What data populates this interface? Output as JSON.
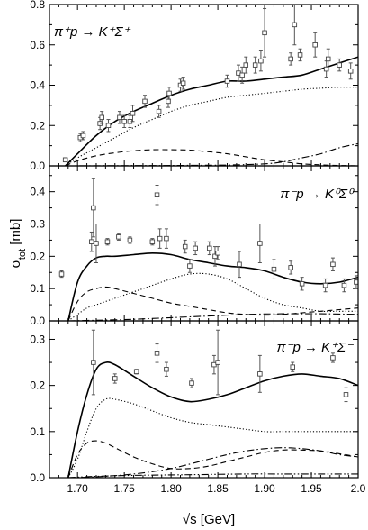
{
  "figure": {
    "xlabel": "√s [GeV]",
    "ylabel": "σ_tot [mb]"
  },
  "chart_data": [
    {
      "type": "scatter",
      "label": "π⁺p → K⁺Σ⁺",
      "xlim": [
        1.67,
        2.0
      ],
      "ylim": [
        0,
        0.8
      ],
      "xticks": [
        "1.70",
        "1.75",
        "1.80",
        "1.85",
        "1.90",
        "1.95",
        "2.0"
      ],
      "yticks": [
        "0.0",
        "0.2",
        "0.4",
        "0.6",
        "0.8"
      ],
      "points": [
        {
          "x": 1.687,
          "y": 0.03,
          "err": 0.01
        },
        {
          "x": 1.703,
          "y": 0.14,
          "err": 0.02
        },
        {
          "x": 1.706,
          "y": 0.15,
          "err": 0.02
        },
        {
          "x": 1.724,
          "y": 0.21,
          "err": 0.03
        },
        {
          "x": 1.726,
          "y": 0.24,
          "err": 0.03
        },
        {
          "x": 1.733,
          "y": 0.2,
          "err": 0.03
        },
        {
          "x": 1.745,
          "y": 0.24,
          "err": 0.03
        },
        {
          "x": 1.75,
          "y": 0.22,
          "err": 0.03
        },
        {
          "x": 1.756,
          "y": 0.22,
          "err": 0.03
        },
        {
          "x": 1.759,
          "y": 0.26,
          "err": 0.04
        },
        {
          "x": 1.772,
          "y": 0.32,
          "err": 0.03
        },
        {
          "x": 1.787,
          "y": 0.27,
          "err": 0.03
        },
        {
          "x": 1.797,
          "y": 0.32,
          "err": 0.03
        },
        {
          "x": 1.798,
          "y": 0.36,
          "err": 0.03
        },
        {
          "x": 1.81,
          "y": 0.4,
          "err": 0.03
        },
        {
          "x": 1.813,
          "y": 0.41,
          "err": 0.03
        },
        {
          "x": 1.86,
          "y": 0.42,
          "err": 0.03
        },
        {
          "x": 1.872,
          "y": 0.46,
          "err": 0.04
        },
        {
          "x": 1.876,
          "y": 0.45,
          "err": 0.04
        },
        {
          "x": 1.88,
          "y": 0.5,
          "err": 0.04
        },
        {
          "x": 1.89,
          "y": 0.5,
          "err": 0.04
        },
        {
          "x": 1.896,
          "y": 0.52,
          "err": 0.05
        },
        {
          "x": 1.9,
          "y": 0.66,
          "err": 0.12
        },
        {
          "x": 1.928,
          "y": 0.53,
          "err": 0.03
        },
        {
          "x": 1.932,
          "y": 0.7,
          "err": 0.1
        },
        {
          "x": 1.938,
          "y": 0.55,
          "err": 0.03
        },
        {
          "x": 1.954,
          "y": 0.6,
          "err": 0.06
        },
        {
          "x": 1.966,
          "y": 0.48,
          "err": 0.04
        },
        {
          "x": 1.968,
          "y": 0.53,
          "err": 0.05
        },
        {
          "x": 1.98,
          "y": 0.5,
          "err": 0.03
        },
        {
          "x": 1.992,
          "y": 0.47,
          "err": 0.04
        }
      ],
      "curves": [
        {
          "style": "solid",
          "x": [
            1.687,
            1.7,
            1.72,
            1.74,
            1.76,
            1.78,
            1.8,
            1.82,
            1.84,
            1.86,
            1.88,
            1.9,
            1.92,
            1.94,
            1.96,
            1.98,
            2.0
          ],
          "y": [
            0.0,
            0.06,
            0.15,
            0.22,
            0.27,
            0.31,
            0.35,
            0.38,
            0.4,
            0.42,
            0.42,
            0.43,
            0.44,
            0.45,
            0.48,
            0.51,
            0.54
          ]
        },
        {
          "style": "dotted",
          "x": [
            1.687,
            1.7,
            1.72,
            1.74,
            1.76,
            1.78,
            1.8,
            1.82,
            1.84,
            1.86,
            1.88,
            1.9,
            1.92,
            1.94,
            1.96,
            1.98,
            2.0
          ],
          "y": [
            0.0,
            0.04,
            0.09,
            0.14,
            0.19,
            0.23,
            0.27,
            0.3,
            0.32,
            0.34,
            0.35,
            0.36,
            0.37,
            0.38,
            0.385,
            0.39,
            0.39
          ]
        },
        {
          "style": "dashed",
          "x": [
            1.687,
            1.7,
            1.72,
            1.74,
            1.76,
            1.78,
            1.8,
            1.82,
            1.84,
            1.86,
            1.88,
            1.9,
            1.92,
            1.94,
            1.96,
            1.98,
            2.0
          ],
          "y": [
            0.0,
            0.025,
            0.05,
            0.065,
            0.075,
            0.08,
            0.08,
            0.078,
            0.07,
            0.06,
            0.045,
            0.03,
            0.02,
            0.01,
            0.005,
            0.002,
            0.0
          ]
        },
        {
          "style": "dashdot",
          "x": [
            1.687,
            1.74,
            1.8,
            1.86,
            1.9,
            1.92,
            1.94,
            1.96,
            1.98,
            2.0
          ],
          "y": [
            0.0,
            0.001,
            0.002,
            0.004,
            0.01,
            0.02,
            0.04,
            0.06,
            0.09,
            0.11
          ]
        }
      ]
    },
    {
      "type": "scatter",
      "label": "π⁻p → K⁰Σ⁰",
      "xlim": [
        1.67,
        2.0
      ],
      "ylim": [
        0,
        0.48
      ],
      "xticks": [
        "1.70",
        "1.75",
        "1.80",
        "1.85",
        "1.90",
        "1.95",
        "2.0"
      ],
      "yticks": [
        "0.0",
        "0.1",
        "0.2",
        "0.3",
        "0.4"
      ],
      "points": [
        {
          "x": 1.683,
          "y": 0.145,
          "err": 0.01
        },
        {
          "x": 1.715,
          "y": 0.245,
          "err": 0.03
        },
        {
          "x": 1.717,
          "y": 0.35,
          "err": 0.09
        },
        {
          "x": 1.72,
          "y": 0.24,
          "err": 0.06
        },
        {
          "x": 1.732,
          "y": 0.245,
          "err": 0.01
        },
        {
          "x": 1.744,
          "y": 0.26,
          "err": 0.01
        },
        {
          "x": 1.756,
          "y": 0.25,
          "err": 0.01
        },
        {
          "x": 1.78,
          "y": 0.245,
          "err": 0.01
        },
        {
          "x": 1.785,
          "y": 0.39,
          "err": 0.03
        },
        {
          "x": 1.788,
          "y": 0.255,
          "err": 0.03
        },
        {
          "x": 1.795,
          "y": 0.255,
          "err": 0.03
        },
        {
          "x": 1.815,
          "y": 0.23,
          "err": 0.02
        },
        {
          "x": 1.82,
          "y": 0.17,
          "err": 0.02
        },
        {
          "x": 1.826,
          "y": 0.225,
          "err": 0.02
        },
        {
          "x": 1.841,
          "y": 0.225,
          "err": 0.02
        },
        {
          "x": 1.847,
          "y": 0.2,
          "err": 0.03
        },
        {
          "x": 1.85,
          "y": 0.21,
          "err": 0.02
        },
        {
          "x": 1.873,
          "y": 0.175,
          "err": 0.04
        },
        {
          "x": 1.895,
          "y": 0.24,
          "err": 0.06
        },
        {
          "x": 1.91,
          "y": 0.16,
          "err": 0.03
        },
        {
          "x": 1.928,
          "y": 0.165,
          "err": 0.02
        },
        {
          "x": 1.94,
          "y": 0.115,
          "err": 0.02
        },
        {
          "x": 1.965,
          "y": 0.11,
          "err": 0.02
        },
        {
          "x": 1.973,
          "y": 0.175,
          "err": 0.02
        },
        {
          "x": 1.985,
          "y": 0.11,
          "err": 0.02
        },
        {
          "x": 1.998,
          "y": 0.12,
          "err": 0.02
        }
      ],
      "curves": [
        {
          "style": "solid",
          "x": [
            1.69,
            1.7,
            1.71,
            1.72,
            1.73,
            1.74,
            1.76,
            1.78,
            1.8,
            1.82,
            1.84,
            1.86,
            1.88,
            1.9,
            1.92,
            1.94,
            1.96,
            1.98,
            2.0
          ],
          "y": [
            0.0,
            0.12,
            0.17,
            0.195,
            0.2,
            0.2,
            0.205,
            0.21,
            0.205,
            0.19,
            0.18,
            0.17,
            0.165,
            0.155,
            0.135,
            0.12,
            0.115,
            0.12,
            0.135
          ]
        },
        {
          "style": "dashed",
          "x": [
            1.69,
            1.7,
            1.71,
            1.72,
            1.73,
            1.74,
            1.76,
            1.78,
            1.8,
            1.82,
            1.84,
            1.86,
            1.88,
            1.9,
            1.92,
            1.94,
            1.96,
            1.98,
            2.0
          ],
          "y": [
            0.0,
            0.06,
            0.09,
            0.1,
            0.105,
            0.1,
            0.085,
            0.07,
            0.055,
            0.045,
            0.035,
            0.025,
            0.02,
            0.018,
            0.02,
            0.025,
            0.03,
            0.035,
            0.04
          ]
        },
        {
          "style": "dotted",
          "x": [
            1.69,
            1.7,
            1.71,
            1.72,
            1.74,
            1.76,
            1.78,
            1.8,
            1.82,
            1.84,
            1.86,
            1.88,
            1.9,
            1.92,
            1.94,
            1.96,
            1.98,
            2.0
          ],
          "y": [
            0.0,
            0.02,
            0.04,
            0.05,
            0.07,
            0.09,
            0.11,
            0.13,
            0.145,
            0.145,
            0.13,
            0.1,
            0.07,
            0.05,
            0.04,
            0.03,
            0.03,
            0.03
          ]
        },
        {
          "style": "dashdot",
          "x": [
            1.69,
            1.72,
            1.76,
            1.8,
            1.84,
            1.88,
            1.92,
            1.96,
            2.0
          ],
          "y": [
            0.0,
            0.002,
            0.005,
            0.01,
            0.015,
            0.02,
            0.022,
            0.022,
            0.02
          ]
        }
      ]
    },
    {
      "type": "scatter",
      "label": "π⁻p → K⁺Σ⁻",
      "xlim": [
        1.67,
        2.0
      ],
      "ylim": [
        0,
        0.34
      ],
      "xticks": [
        "1.70",
        "1.75",
        "1.80",
        "1.85",
        "1.90",
        "1.95",
        "2.0"
      ],
      "yticks": [
        "0.0",
        "0.1",
        "0.2",
        "0.3"
      ],
      "points": [
        {
          "x": 1.717,
          "y": 0.25,
          "err": 0.07
        },
        {
          "x": 1.74,
          "y": 0.215,
          "err": 0.01
        },
        {
          "x": 1.763,
          "y": 0.23,
          "err": 0.005
        },
        {
          "x": 1.785,
          "y": 0.27,
          "err": 0.02
        },
        {
          "x": 1.795,
          "y": 0.235,
          "err": 0.015
        },
        {
          "x": 1.822,
          "y": 0.205,
          "err": 0.01
        },
        {
          "x": 1.846,
          "y": 0.245,
          "err": 0.02
        },
        {
          "x": 1.85,
          "y": 0.25,
          "err": 0.07
        },
        {
          "x": 1.895,
          "y": 0.225,
          "err": 0.04
        },
        {
          "x": 1.93,
          "y": 0.24,
          "err": 0.01
        },
        {
          "x": 1.973,
          "y": 0.26,
          "err": 0.01
        },
        {
          "x": 1.987,
          "y": 0.18,
          "err": 0.015
        }
      ],
      "curves": [
        {
          "style": "solid",
          "x": [
            1.69,
            1.7,
            1.71,
            1.72,
            1.73,
            1.74,
            1.76,
            1.78,
            1.8,
            1.82,
            1.84,
            1.86,
            1.88,
            1.9,
            1.92,
            1.94,
            1.96,
            1.98,
            2.0
          ],
          "y": [
            0.0,
            0.1,
            0.18,
            0.235,
            0.25,
            0.245,
            0.22,
            0.195,
            0.175,
            0.165,
            0.17,
            0.18,
            0.195,
            0.21,
            0.22,
            0.225,
            0.22,
            0.215,
            0.2
          ]
        },
        {
          "style": "dotted",
          "x": [
            1.69,
            1.7,
            1.71,
            1.72,
            1.73,
            1.74,
            1.76,
            1.78,
            1.8,
            1.82,
            1.84,
            1.86,
            1.88,
            1.9,
            1.92,
            1.94,
            1.96,
            1.98,
            2.0
          ],
          "y": [
            0.0,
            0.04,
            0.1,
            0.15,
            0.17,
            0.17,
            0.16,
            0.145,
            0.13,
            0.12,
            0.115,
            0.11,
            0.105,
            0.1,
            0.1,
            0.1,
            0.1,
            0.1,
            0.1
          ]
        },
        {
          "style": "dashed",
          "x": [
            1.69,
            1.7,
            1.71,
            1.72,
            1.73,
            1.74,
            1.76,
            1.78,
            1.8,
            1.82,
            1.84,
            1.86,
            1.88,
            1.9,
            1.92,
            1.94,
            1.96,
            1.98,
            2.0
          ],
          "y": [
            0.0,
            0.05,
            0.075,
            0.08,
            0.075,
            0.065,
            0.045,
            0.03,
            0.02,
            0.02,
            0.025,
            0.035,
            0.045,
            0.055,
            0.06,
            0.06,
            0.058,
            0.052,
            0.045
          ]
        },
        {
          "style": "dashdot",
          "x": [
            1.69,
            1.72,
            1.76,
            1.8,
            1.84,
            1.86,
            1.88,
            1.9,
            1.92,
            1.94,
            1.96,
            1.98,
            2.0
          ],
          "y": [
            0.0,
            0.002,
            0.008,
            0.02,
            0.04,
            0.05,
            0.058,
            0.063,
            0.065,
            0.063,
            0.058,
            0.05,
            0.045
          ]
        },
        {
          "style": "dashdotdot",
          "x": [
            1.69,
            1.72,
            1.76,
            1.8,
            1.84,
            1.88,
            1.92,
            1.96,
            2.0
          ],
          "y": [
            0.0,
            0.003,
            0.005,
            0.006,
            0.007,
            0.008,
            0.008,
            0.008,
            0.008
          ]
        }
      ]
    }
  ]
}
